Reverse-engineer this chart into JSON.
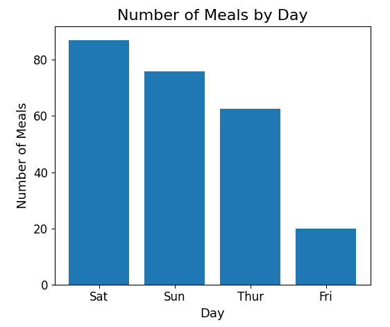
{
  "categories": [
    "Sat",
    "Sun",
    "Thur",
    "Fri"
  ],
  "values": [
    87.0,
    76.0,
    62.5,
    19.8
  ],
  "bar_color": "#1f77b4",
  "title": "Number of Meals by Day",
  "xlabel": "Day",
  "ylabel": "Number of Meals",
  "ylim": [
    0,
    92
  ],
  "title_fontsize": 16,
  "label_fontsize": 13,
  "tick_fontsize": 12,
  "figsize": [
    5.62,
    4.72
  ],
  "dpi": 100
}
